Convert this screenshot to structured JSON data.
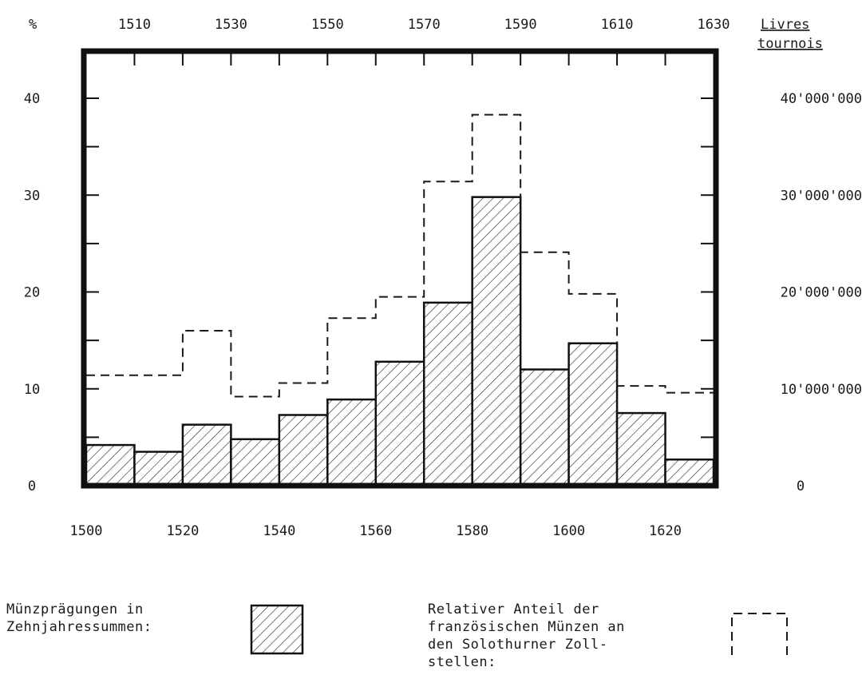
{
  "chart_data": {
    "type": "bar",
    "left_axis": {
      "unit_label": "%",
      "ticks": [
        "0",
        "10",
        "20",
        "30",
        "40"
      ],
      "range": [
        0,
        40
      ]
    },
    "right_axis": {
      "unit_label_line1": "Livres",
      "unit_label_line2": "tournois",
      "ticks": [
        "0",
        "10'000'000",
        "20'000'000",
        "30'000'000",
        "40'000'000"
      ],
      "range": [
        0,
        40000000
      ]
    },
    "bottom_axis": {
      "ticks": [
        "1500",
        "1520",
        "1540",
        "1560",
        "1580",
        "1600",
        "1620"
      ],
      "range": [
        1500,
        1630
      ]
    },
    "top_axis": {
      "ticks": [
        "1510",
        "1530",
        "1550",
        "1570",
        "1590",
        "1610",
        "1630"
      ]
    },
    "decades": [
      1500,
      1510,
      1520,
      1530,
      1540,
      1550,
      1560,
      1570,
      1580,
      1590,
      1600,
      1610,
      1620
    ],
    "series": [
      {
        "name": "Münzprägungen in Zehnjahressummen",
        "style": "hatched-bar",
        "values": [
          4200000,
          3500000,
          6300000,
          4800000,
          7300000,
          8900000,
          12800000,
          18900000,
          29800000,
          12000000,
          14700000,
          7500000,
          2700000
        ]
      },
      {
        "name": "Relativer Anteil der französischen Münzen an den Solothurner Zollstellen",
        "style": "dashed-step",
        "values": [
          11.4,
          11.4,
          16,
          9.2,
          10.6,
          17.3,
          19.5,
          31.4,
          38.3,
          24.1,
          19.8,
          10.3,
          9.6
        ]
      }
    ]
  },
  "legend": {
    "hatched_line1": "Münzprägungen in",
    "hatched_line2": "Zehnjahressummen:",
    "dashed_line1": "Relativer Anteil der",
    "dashed_line2": "französischen Münzen an",
    "dashed_line3": "den Solothurner Zoll-",
    "dashed_line4": "stellen:"
  }
}
